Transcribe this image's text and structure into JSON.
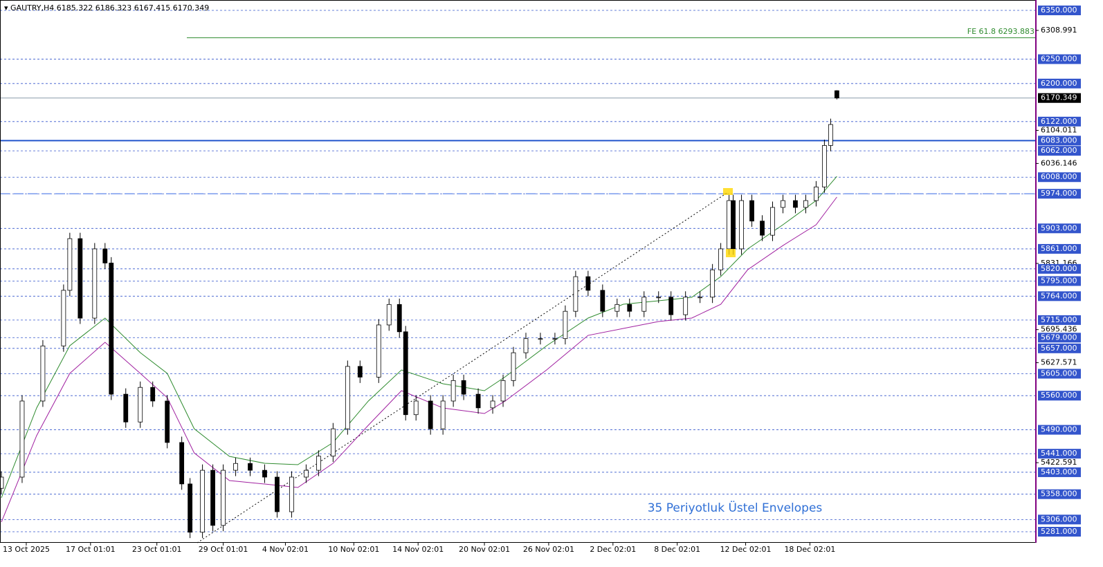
{
  "chart_data": {
    "type": "candlestick",
    "symbol": "GAUTRY,H4",
    "annotation": "35 Periyotluk Üstel Envelopes",
    "fe_label": "FE 61.8 6293.883",
    "fe_level": 6293.883,
    "xlim": [
      0,
      499
    ],
    "ylim": [
      5258.3,
      6371.3
    ],
    "xticks": [
      {
        "value": 12,
        "label": "13 Oct 2025"
      },
      {
        "value": 43,
        "label": "17 Oct 01:01"
      },
      {
        "value": 75,
        "label": "23 Oct 01:01"
      },
      {
        "value": 107,
        "label": "29 Oct 01:01"
      },
      {
        "value": 137,
        "label": "4 Nov 02:01"
      },
      {
        "value": 170,
        "label": "10 Nov 02:01"
      },
      {
        "value": 201,
        "label": "14 Nov 02:01"
      },
      {
        "value": 233,
        "label": "20 Nov 02:01"
      },
      {
        "value": 264,
        "label": "26 Nov 02:01"
      },
      {
        "value": 295,
        "label": "2 Dec 02:01"
      },
      {
        "value": 326,
        "label": "8 Dec 02:01"
      },
      {
        "value": 359,
        "label": "12 Dec 02:01"
      },
      {
        "value": 390,
        "label": "18 Dec 02:01"
      }
    ],
    "yticks": [
      {
        "value": 6350,
        "label": "6350.000"
      },
      6308.991,
      {
        "value": 6250,
        "label": "6250.000"
      },
      {
        "value": 6200,
        "label": "6200.000"
      },
      {
        "value": 6122,
        "label": "6122.000"
      },
      6104.011,
      {
        "value": 6083,
        "label": "6083.000"
      },
      {
        "value": 6062,
        "label": "6062.000"
      },
      6036.146,
      {
        "value": 6008,
        "label": "6008.000"
      },
      {
        "value": 5974,
        "label": "5974.000"
      },
      {
        "value": 5903,
        "label": "5903.000"
      },
      {
        "value": 5861,
        "label": "5861.000"
      },
      5831.166,
      {
        "value": 5820,
        "label": "5820.000"
      },
      {
        "value": 5795,
        "label": "5795.000"
      },
      {
        "value": 5764,
        "label": "5764.000"
      },
      {
        "value": 5715,
        "label": "5715.000"
      },
      5695.436,
      {
        "value": 5679,
        "label": "5679.000"
      },
      {
        "value": 5657,
        "label": "5657.000"
      },
      5627.571,
      {
        "value": 5605,
        "label": "5605.000"
      },
      {
        "value": 5560,
        "label": "5560.000"
      },
      {
        "value": 5490,
        "label": "5490.000"
      },
      {
        "value": 5441,
        "label": "5441.000"
      },
      5422.591,
      {
        "value": 5403,
        "label": "5403.000"
      },
      {
        "value": 5358,
        "label": "5358.000"
      },
      {
        "value": 5306,
        "label": "5306.000"
      },
      {
        "value": 5281,
        "label": "5281.000"
      }
    ],
    "highlight_lines": [
      {
        "value": 6083,
        "style": "solid",
        "color": "#2255cc"
      },
      {
        "value": 5974,
        "style": "dashed",
        "color": "#7799ee"
      }
    ],
    "grid_color": "#3355cc",
    "up_color": "#ffffff",
    "down_color": "#000000",
    "x": [
      0,
      10,
      20,
      30,
      33,
      38,
      45,
      50,
      53,
      60,
      67,
      73,
      80,
      87,
      91,
      97,
      102,
      107,
      113,
      120,
      127,
      133,
      140,
      147,
      153,
      160,
      167,
      173,
      182,
      187,
      192,
      195,
      200,
      207,
      213,
      218,
      223,
      230,
      237,
      242,
      247,
      253,
      260,
      267,
      272,
      277,
      283,
      290,
      297,
      303,
      310,
      317,
      323,
      330,
      337,
      343,
      347,
      351,
      353,
      357,
      362,
      367,
      372,
      377,
      383,
      388,
      393,
      397,
      400,
      403
    ],
    "open": [
      5370,
      5393,
      5549,
      5662,
      5776,
      5882,
      5719,
      5861,
      5832,
      5563,
      5506,
      5577,
      5549,
      5464,
      5379,
      5280,
      5407,
      5294,
      5407,
      5421,
      5407,
      5393,
      5322,
      5393,
      5407,
      5436,
      5492,
      5620,
      5598,
      5705,
      5747,
      5691,
      5521,
      5549,
      5492,
      5549,
      5591,
      5563,
      5535,
      5549,
      5591,
      5648,
      5677,
      5677,
      5677,
      5733,
      5804,
      5776,
      5733,
      5747,
      5733,
      5762,
      5762,
      5726,
      5762,
      5762,
      5818,
      5861,
      5960,
      5861,
      5960,
      5918,
      5889,
      5946,
      5960,
      5946,
      5960,
      5988,
      6073,
      6185.322
    ],
    "high": [
      5405,
      5561,
      5674,
      5788,
      5894,
      5894,
      5873,
      5873,
      5844,
      5575,
      5589,
      5589,
      5561,
      5476,
      5391,
      5419,
      5419,
      5419,
      5433,
      5433,
      5419,
      5405,
      5405,
      5419,
      5448,
      5504,
      5632,
      5632,
      5717,
      5759,
      5759,
      5703,
      5561,
      5561,
      5561,
      5603,
      5603,
      5575,
      5561,
      5603,
      5660,
      5689,
      5689,
      5689,
      5745,
      5816,
      5816,
      5788,
      5759,
      5759,
      5774,
      5774,
      5774,
      5774,
      5774,
      5830,
      5873,
      5972,
      5972,
      5972,
      5972,
      5930,
      5958,
      5972,
      5972,
      5972,
      6000,
      6085,
      6128,
      6186.323
    ],
    "low": [
      5358,
      5381,
      5537,
      5650,
      5764,
      5707,
      5707,
      5820,
      5551,
      5494,
      5494,
      5537,
      5452,
      5367,
      5268,
      5268,
      5282,
      5282,
      5395,
      5395,
      5381,
      5310,
      5310,
      5381,
      5395,
      5424,
      5480,
      5586,
      5586,
      5693,
      5679,
      5509,
      5509,
      5480,
      5480,
      5537,
      5551,
      5523,
      5523,
      5537,
      5579,
      5636,
      5665,
      5665,
      5665,
      5721,
      5764,
      5721,
      5721,
      5721,
      5721,
      5750,
      5714,
      5714,
      5750,
      5750,
      5806,
      5849,
      5849,
      5849,
      5906,
      5877,
      5877,
      5934,
      5934,
      5934,
      5948,
      5976,
      6061,
      6167.415
    ],
    "close": [
      5393,
      5549,
      5662,
      5776,
      5882,
      5719,
      5861,
      5832,
      5563,
      5506,
      5577,
      5549,
      5464,
      5379,
      5280,
      5407,
      5294,
      5407,
      5421,
      5407,
      5393,
      5322,
      5393,
      5407,
      5436,
      5492,
      5620,
      5598,
      5705,
      5747,
      5691,
      5521,
      5549,
      5492,
      5549,
      5591,
      5563,
      5535,
      5549,
      5591,
      5648,
      5677,
      5677,
      5677,
      5733,
      5804,
      5776,
      5733,
      5747,
      5733,
      5762,
      5762,
      5726,
      5762,
      5762,
      5818,
      5861,
      5960,
      5861,
      5960,
      5918,
      5889,
      5946,
      5960,
      5946,
      5960,
      5988,
      6073,
      6116,
      6170.349
    ],
    "envelopes": [
      {
        "color": "#2e8b2e",
        "x": [
          0,
          17,
          33,
          50,
          67,
          80,
          93,
          110,
          127,
          143,
          160,
          177,
          193,
          213,
          233,
          243,
          263,
          283,
          300,
          317,
          333,
          347,
          360,
          377,
          393,
          403
        ],
        "values": [
          5350.5,
          5534.8,
          5662.4,
          5719.1,
          5648.2,
          5605.7,
          5492.2,
          5435.5,
          5421.3,
          5418.5,
          5463.9,
          5549.0,
          5612.7,
          5584.4,
          5570.2,
          5598.6,
          5662.4,
          5719.1,
          5747.4,
          5754.5,
          5761.6,
          5804.1,
          5860.9,
          5910.5,
          5960.1,
          6009.7
        ]
      },
      {
        "color": "#a020a0",
        "x": [
          0,
          17,
          33,
          50,
          67,
          80,
          93,
          110,
          127,
          143,
          160,
          177,
          193,
          213,
          233,
          243,
          263,
          283,
          300,
          317,
          333,
          347,
          360,
          377,
          393,
          403
        ],
        "values": [
          5300.8,
          5478.1,
          5605.7,
          5669.5,
          5605.7,
          5556.0,
          5442.6,
          5385.9,
          5378.8,
          5371.7,
          5421.3,
          5499.3,
          5570.2,
          5534.8,
          5523.4,
          5549.0,
          5612.7,
          5683.6,
          5697.8,
          5712.0,
          5719.1,
          5747.4,
          5818.3,
          5867.9,
          5910.5,
          5967.2
        ]
      }
    ]
  }
}
